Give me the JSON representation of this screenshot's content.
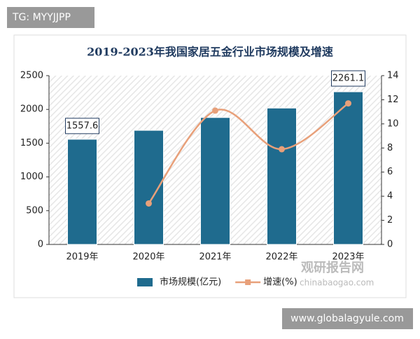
{
  "watermarks": {
    "top_left": "TG: MYYJJPP",
    "bottom_right": "www.globalagyule.com",
    "logo": "观研报告网",
    "logo_url": "chinabaogao.com"
  },
  "chart_data": {
    "type": "bar",
    "title": "2019-2023年我国家居五金行业市场规模及增速",
    "categories": [
      "2019年",
      "2020年",
      "2021年",
      "2022年",
      "2023年"
    ],
    "series": [
      {
        "name": "市场规模(亿元)",
        "type": "bar",
        "color": "#1f6b8e",
        "values": [
          1557.6,
          1690,
          1880,
          2020,
          2261.1
        ],
        "value_labels": [
          "1557.6",
          null,
          null,
          null,
          "2261.1"
        ]
      },
      {
        "name": "增速(%)",
        "type": "line",
        "axis": "y2",
        "color": "#e8a07a",
        "values": [
          null,
          3.4,
          11.1,
          7.9,
          11.7
        ]
      }
    ],
    "ylim": [
      0,
      2500
    ],
    "yticks": [
      0,
      500,
      1000,
      1500,
      2000,
      2500
    ],
    "y2lim": [
      0,
      14
    ],
    "y2ticks": [
      0,
      2,
      4,
      6,
      8,
      10,
      12,
      14
    ],
    "legend": "bottom"
  }
}
